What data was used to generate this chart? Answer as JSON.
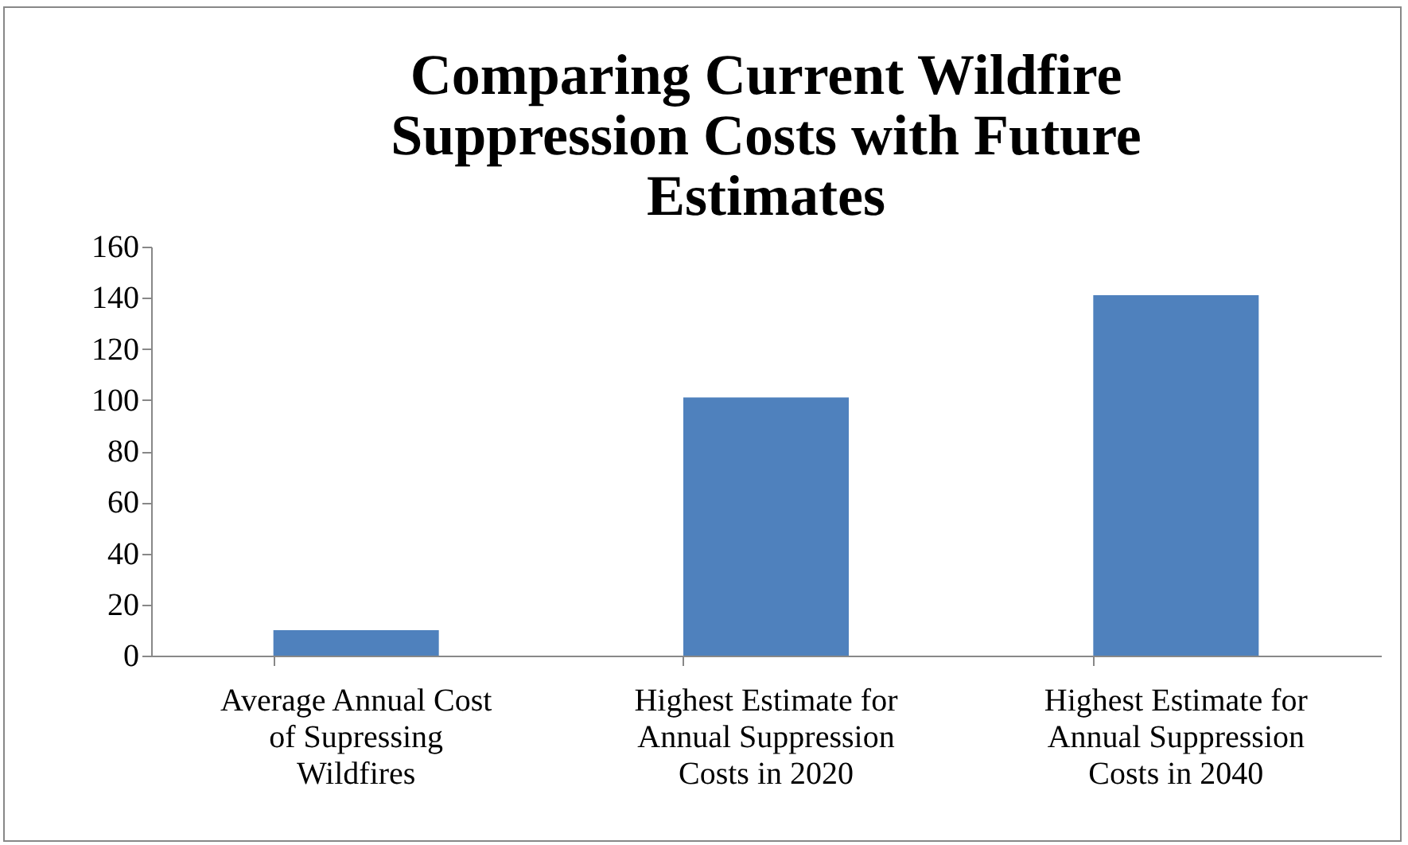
{
  "chart_data": {
    "type": "bar",
    "title": "Comparing Current Wildfire Suppression Costs with Future Estimates",
    "categories": [
      "Average Annual Cost of Supressing Wildfires",
      "Highest Estimate for Annual Suppression Costs in 2020",
      "Highest Estimate for Annual Suppression Costs in 2040"
    ],
    "values": [
      10,
      101,
      141
    ],
    "color": "#4f81bd",
    "ylim": [
      0,
      160
    ],
    "yticks": [
      0,
      20,
      40,
      60,
      80,
      100,
      120,
      140,
      160
    ],
    "grid": false
  }
}
